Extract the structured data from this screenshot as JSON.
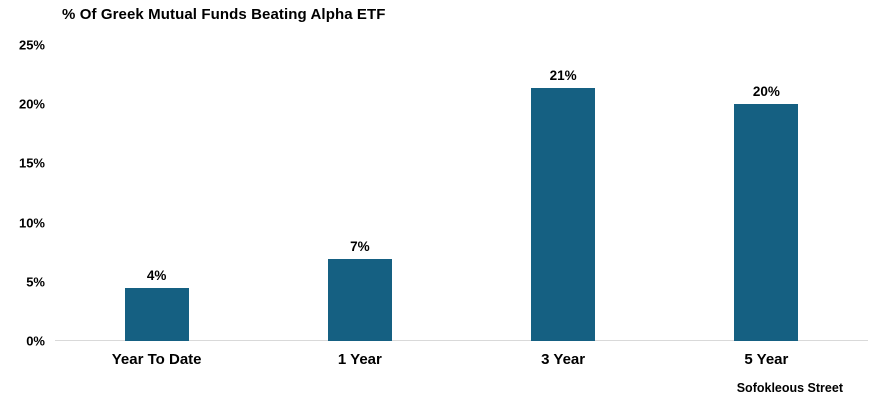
{
  "chart_data": {
    "type": "bar",
    "title": "% Of Greek Mutual Funds Beating Alpha ETF",
    "categories": [
      "Year To Date",
      "1 Year",
      "3 Year",
      "5 Year"
    ],
    "values": [
      4,
      7,
      21,
      20
    ],
    "value_labels": [
      "4%",
      "7%",
      "21%",
      "20%"
    ],
    "values_precise": [
      4.5,
      6.9,
      21.4,
      20.0
    ],
    "xlabel": "",
    "ylabel": "",
    "ylim": [
      0,
      25
    ],
    "y_ticks": [
      "0%",
      "5%",
      "10%",
      "15%",
      "20%",
      "25%"
    ],
    "grid": false,
    "legend": false,
    "bar_color": "#156082",
    "axis_line_color": "#d9d9d9",
    "text_color": "#000000",
    "annotation": "Sofokleous Street"
  }
}
